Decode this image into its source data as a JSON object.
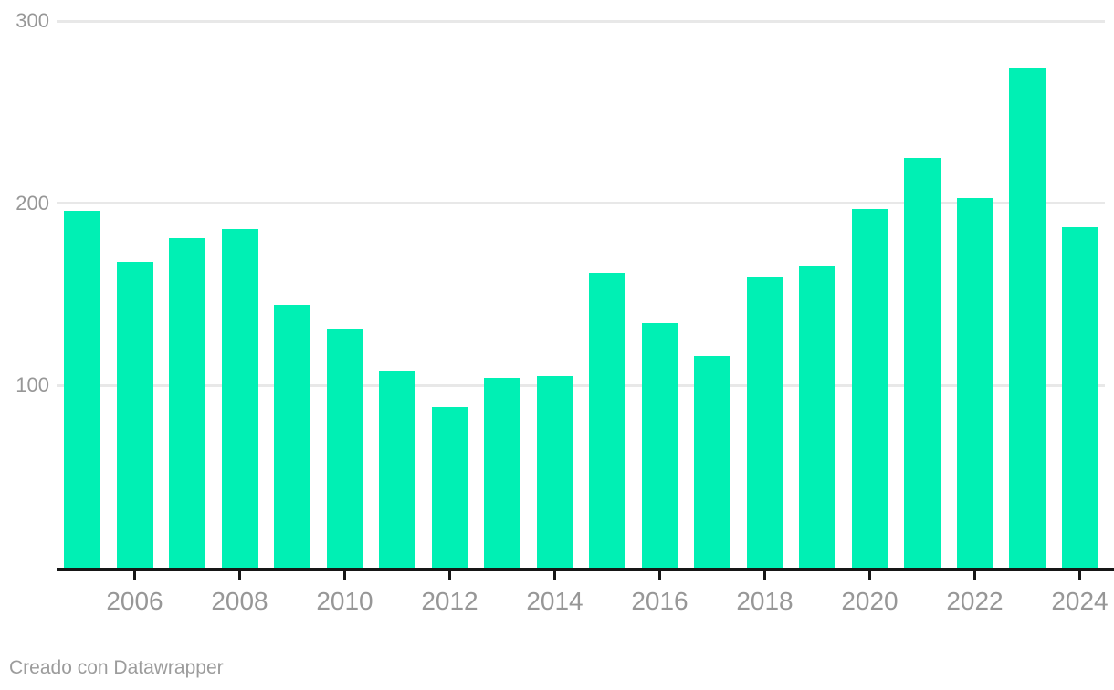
{
  "chart_data": {
    "type": "bar",
    "title": "",
    "xlabel": "",
    "ylabel": "",
    "categories": [
      "2005",
      "2006",
      "2007",
      "2008",
      "2009",
      "2010",
      "2011",
      "2012",
      "2013",
      "2014",
      "2015",
      "2016",
      "2017",
      "2018",
      "2019",
      "2020",
      "2021",
      "2022",
      "2023",
      "2024"
    ],
    "values": [
      196,
      168,
      181,
      186,
      144,
      131,
      108,
      88,
      104,
      105,
      162,
      134,
      116,
      160,
      166,
      197,
      225,
      203,
      274,
      187
    ],
    "ylim": [
      0,
      300
    ],
    "y_ticks": [
      {
        "value": 100,
        "label": "100"
      },
      {
        "value": 200,
        "label": "200"
      },
      {
        "value": 300,
        "label": "300"
      }
    ],
    "x_tick_labels": [
      "2006",
      "2008",
      "2010",
      "2012",
      "2014",
      "2016",
      "2018",
      "2020",
      "2022",
      "2024"
    ],
    "grid": "horizontal",
    "legend_position": "none",
    "colors": {
      "bar": "#00f0b4",
      "axis": "#161616",
      "gridline": "#e8e8e8",
      "tick_label": "#979797"
    }
  },
  "attribution": {
    "label": "Creado con Datawrapper"
  }
}
